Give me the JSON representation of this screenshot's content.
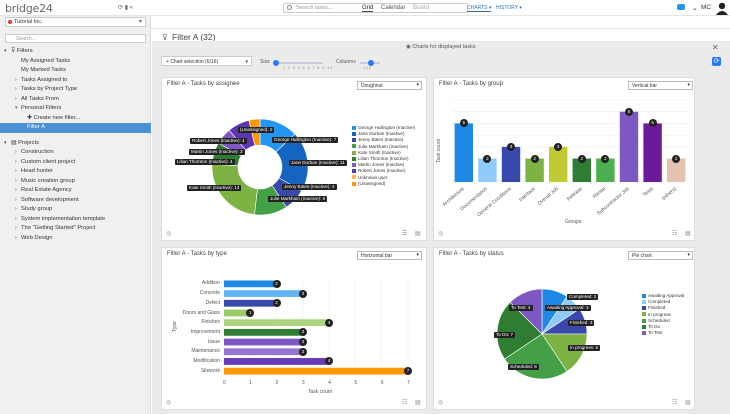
{
  "app": {
    "logo": "bridge24",
    "search_placeholder": "Search tasks...",
    "user_initials": "MC"
  },
  "sidebar": {
    "tools": "⟳ ▮ «",
    "workspace": "Tutorial Inc.",
    "search_placeholder": "Search...",
    "filters_label": "Filters",
    "filter_items": [
      "My Assigned Tasks",
      "My Marked Tasks",
      "Tasks Assigned to",
      "Tasks by Project Type",
      "All Tasks From",
      "Personal Filters"
    ],
    "create_filter": "Create new filter...",
    "selected_filter": "Filter A",
    "projects_label": "Projects",
    "projects": [
      "Construction",
      "Custom client project",
      "Head hunter",
      "Music creation group",
      "Real Estate Agency",
      "Software development",
      "Study group",
      "System implementation template",
      "The \"Getting Started\" Project",
      "Web Design"
    ]
  },
  "view_tabs": {
    "grid": "Grid",
    "calendar": "Calendar",
    "board": "Board",
    "charts": "CHARTS ▾",
    "history": "HISTORY ▾"
  },
  "filter": {
    "title": "Filter A  (32)"
  },
  "charts_header": "Charts for displayed tasks",
  "controls": {
    "chart_selection": "Chart selection (6/16)",
    "size_label": "Size",
    "size_ticks": "1 2 3 4 5 6 7 8 9 10",
    "columns_label": "Columns",
    "columns_ticks": "1 2 3"
  },
  "colors": {
    "accent": "#2979ff",
    "selected": "#4a90d9"
  },
  "panels": {
    "assignee": {
      "title": "Filter A - Tasks by assignee",
      "type": "Doughnut"
    },
    "group": {
      "title": "Filter A - Tasks by group",
      "type": "Vertical bar",
      "ylabel": "Task count",
      "xlabel": "Groups"
    },
    "type": {
      "title": "Filter A - Tasks by type",
      "type": "Horizontal bar",
      "ylabel": "Type",
      "xlabel": "Task count"
    },
    "status": {
      "title": "Filter A - Tasks by status",
      "type": "Pie chart"
    }
  },
  "chart_data": [
    {
      "type": "pie",
      "subtype": "doughnut",
      "title": "Filter A - Tasks by assignee",
      "legend": "right",
      "slices": [
        {
          "name": "George Hullington (Inactive)",
          "value": 7,
          "color": "#2196F3"
        },
        {
          "name": "Jane Durban (Inactive)",
          "value": 11,
          "color": "#1565C0"
        },
        {
          "name": "Jenny Bates (Inactive)",
          "value": 4,
          "color": "#3949AB"
        },
        {
          "name": "Julie Markham (Inactive)",
          "value": 6,
          "color": "#43A047"
        },
        {
          "name": "Kate Smith (Inactive)",
          "value": 13,
          "color": "#7CB342"
        },
        {
          "name": "Lilian Thornton (Inactive)",
          "value": 4,
          "color": "#2E7D32"
        },
        {
          "name": "Martin Jones (Inactive)",
          "value": 3,
          "color": "#7E57C2"
        },
        {
          "name": "Robert Jones (Inactive)",
          "value": 4,
          "color": "#5E35B1"
        },
        {
          "name": "Unknown user",
          "value": 0,
          "color": "#FFB74D"
        },
        {
          "name": "(Unassigned)",
          "value": 2,
          "color": "#FF9800"
        }
      ],
      "labels": [
        {
          "text": "(Unassigned): 2"
        },
        {
          "text": "George Hullington (Inactive): 7"
        },
        {
          "text": "Robert Jones (Inactive): 4"
        },
        {
          "text": "Martin Jones (Inactive): 3"
        },
        {
          "text": "Lilian Thornton (Inactive): 4"
        },
        {
          "text": "Jane Durban (Inactive): 11"
        },
        {
          "text": "Kate Smith (Inactive): 13"
        },
        {
          "text": "Jenny Bates (Inactive): 4"
        },
        {
          "text": "Julie Markham (Inactive): 6"
        }
      ]
    },
    {
      "type": "bar",
      "title": "Filter A - Tasks by group",
      "xlabel": "Groups",
      "ylabel": "Task count",
      "ylim": [
        0,
        7
      ],
      "categories": [
        "Architecture",
        "Documentation",
        "General Conditions",
        "Interface",
        "Overall Job",
        "Release",
        "Rental",
        "Subcontractor Job",
        "Tests",
        "(others)"
      ],
      "values": [
        5,
        2,
        3,
        2,
        3,
        2,
        2,
        6,
        5,
        2
      ],
      "colors": [
        "#1E88E5",
        "#90CAF9",
        "#3949AB",
        "#7CB342",
        "#C0CA33",
        "#2E7D32",
        "#4CAF50",
        "#7E57C2",
        "#6A1B9A",
        "#E6C3B0"
      ]
    },
    {
      "type": "bar",
      "orientation": "horizontal",
      "title": "Filter A - Tasks by type",
      "xlabel": "Task count",
      "ylabel": "Type",
      "xlim": [
        0,
        7
      ],
      "x_ticks": [
        "0",
        "1",
        "2",
        "3",
        "4",
        "5",
        "6",
        "7"
      ],
      "categories": [
        "Addition",
        "Concrete",
        "Defect",
        "Doors and Glass",
        "Finishes",
        "Improvement",
        "Issue",
        "Maintenance",
        "Modification",
        "Sitework"
      ],
      "values": [
        2,
        3,
        2,
        1,
        4,
        3,
        3,
        3,
        4,
        7
      ],
      "colors": [
        "#1E88E5",
        "#64B5F6",
        "#3949AB",
        "#9CCC65",
        "#AED581",
        "#2E7D32",
        "#7E57C2",
        "#9575CD",
        "#673AB7",
        "#FF9800"
      ]
    },
    {
      "type": "pie",
      "title": "Filter A - Tasks by status",
      "legend": "right",
      "slices": [
        {
          "name": "Awaiting Approval",
          "value": 3,
          "color": "#1E88E5"
        },
        {
          "name": "Completed",
          "value": 2,
          "color": "#90CAF9"
        },
        {
          "name": "Finished",
          "value": 3,
          "color": "#3949AB"
        },
        {
          "name": "In progress",
          "value": 5,
          "color": "#7CB342"
        },
        {
          "name": "Scheduled",
          "value": 8,
          "color": "#43A047"
        },
        {
          "name": "To Do",
          "value": 7,
          "color": "#2E7D32"
        },
        {
          "name": "To Test",
          "value": 4,
          "color": "#7E57C2"
        }
      ],
      "labels": [
        {
          "text": "Completed: 2"
        },
        {
          "text": "Awaiting Approval: 3"
        },
        {
          "text": "To Test: 4"
        },
        {
          "text": "Finished: 3"
        },
        {
          "text": "To Do: 7"
        },
        {
          "text": "In progress: 5"
        },
        {
          "text": "Scheduled: 8"
        }
      ]
    }
  ]
}
